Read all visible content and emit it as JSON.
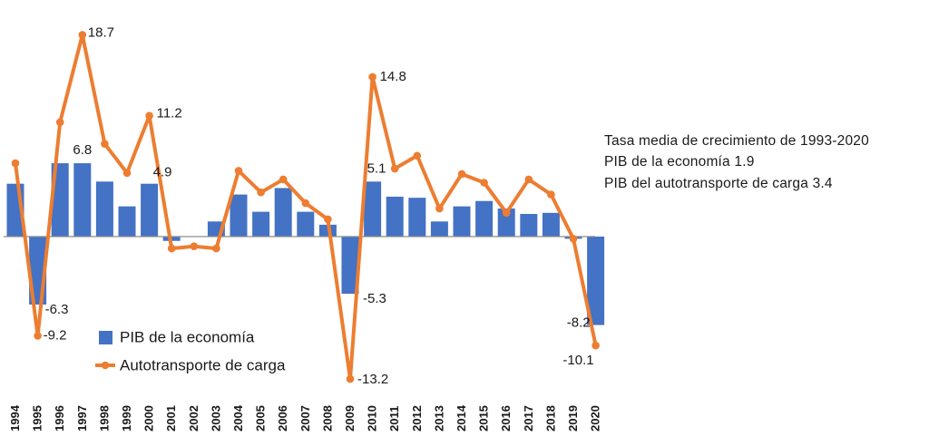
{
  "chart_data": {
    "type": "bar+line",
    "title": "",
    "xlabel": "",
    "ylabel": "",
    "ylim": [
      -14,
      20
    ],
    "categories": [
      "1994",
      "1995",
      "1996",
      "1997",
      "1998",
      "1999",
      "2000",
      "2001",
      "2002",
      "2003",
      "2004",
      "2005",
      "2006",
      "2007",
      "2008",
      "2009",
      "2010",
      "2011",
      "2012",
      "2013",
      "2014",
      "2015",
      "2016",
      "2017",
      "2018",
      "2019",
      "2020"
    ],
    "series": [
      {
        "name": "PIB de la economía",
        "type": "bar",
        "color": "#4472C4",
        "values": [
          4.9,
          -6.3,
          6.8,
          6.8,
          5.1,
          2.8,
          4.9,
          -0.4,
          0.0,
          1.4,
          3.9,
          2.3,
          4.5,
          2.3,
          1.1,
          -5.3,
          5.1,
          3.7,
          3.6,
          1.4,
          2.8,
          3.3,
          2.6,
          2.1,
          2.2,
          -0.2,
          -8.2
        ],
        "labels": {
          "1995": "-6.3",
          "1997": "6.8",
          "2000": "4.9",
          "2009": "-5.3",
          "2010": "5.1",
          "2020": "-8.2"
        }
      },
      {
        "name": "Autotransporte de carga",
        "type": "line",
        "color": "#ED7D31",
        "values": [
          6.8,
          -9.2,
          10.6,
          18.7,
          8.6,
          5.9,
          11.2,
          -1.1,
          -0.9,
          -1.1,
          6.1,
          4.1,
          5.3,
          3.1,
          1.6,
          -13.2,
          14.8,
          6.3,
          7.5,
          2.6,
          5.8,
          5.0,
          2.2,
          5.3,
          3.9,
          -0.2,
          -10.1
        ],
        "labels": {
          "1995": "-9.2",
          "1997": "18.7",
          "2000": "11.2",
          "2009": "-13.2",
          "2010": "14.8",
          "2020": "-10.1"
        }
      }
    ],
    "legend_position": "bottom-left",
    "grid": false
  },
  "notes": [
    "Tasa media de crecimiento de 1993-2020",
    "PIB de la economía  1.9",
    "PIB del autotransporte de carga 3.4"
  ]
}
